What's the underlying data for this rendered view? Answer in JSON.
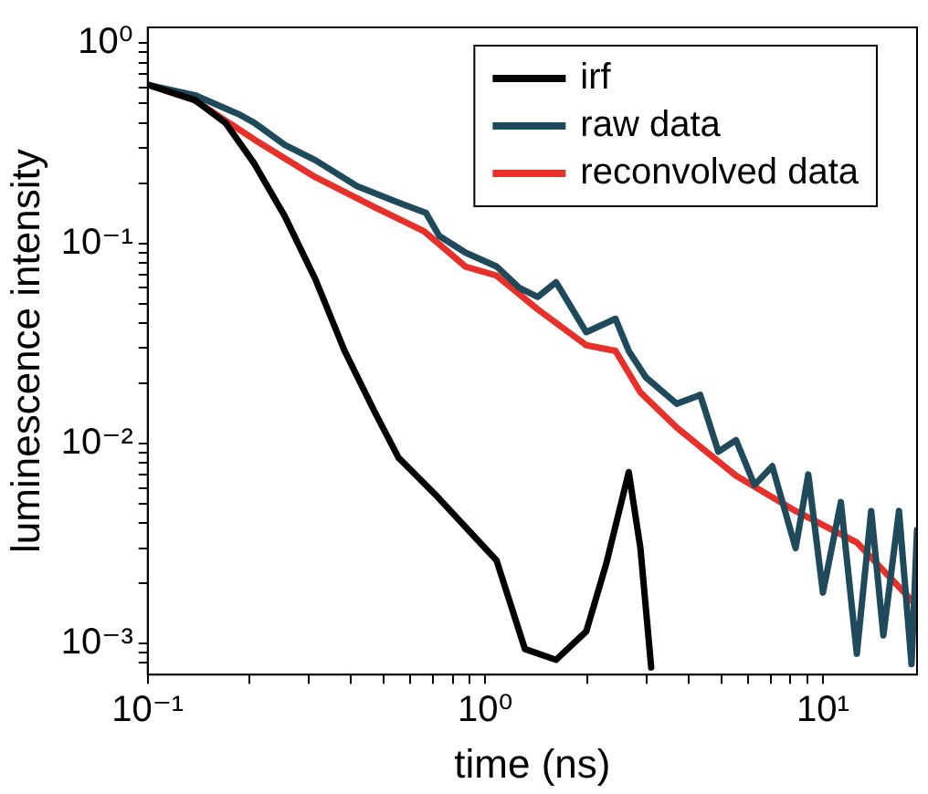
{
  "chart_data": {
    "type": "line",
    "xlabel": "time (ns)",
    "ylabel": "luminescence intensity",
    "log": "xy",
    "grid": false,
    "legend": "top right",
    "marker": "none",
    "line_style": "solid",
    "xlim": [
      0.1,
      19
    ],
    "ylim": [
      0.0007,
      1.2
    ],
    "xticks": [
      {
        "value": 0.1,
        "label": "10⁻¹"
      },
      {
        "value": 0.2,
        "label": null
      },
      {
        "value": 0.3,
        "label": null
      },
      {
        "value": 0.4,
        "label": null
      },
      {
        "value": 0.5,
        "label": null
      },
      {
        "value": 0.6,
        "label": null
      },
      {
        "value": 0.7,
        "label": null
      },
      {
        "value": 0.8,
        "label": null
      },
      {
        "value": 0.9,
        "label": null
      },
      {
        "value": 1,
        "label": "10⁰"
      },
      {
        "value": 2,
        "label": null
      },
      {
        "value": 3,
        "label": null
      },
      {
        "value": 4,
        "label": null
      },
      {
        "value": 5,
        "label": null
      },
      {
        "value": 6,
        "label": null
      },
      {
        "value": 7,
        "label": null
      },
      {
        "value": 8,
        "label": null
      },
      {
        "value": 9,
        "label": null
      },
      {
        "value": 10,
        "label": "10¹"
      }
    ],
    "yticks": [
      {
        "value": 0.0008,
        "label": null
      },
      {
        "value": 0.0009,
        "label": null
      },
      {
        "value": 0.001,
        "label": "10⁻³"
      },
      {
        "value": 0.002,
        "label": null
      },
      {
        "value": 0.003,
        "label": null
      },
      {
        "value": 0.004,
        "label": null
      },
      {
        "value": 0.005,
        "label": null
      },
      {
        "value": 0.006,
        "label": null
      },
      {
        "value": 0.007,
        "label": null
      },
      {
        "value": 0.008,
        "label": null
      },
      {
        "value": 0.009,
        "label": null
      },
      {
        "value": 0.01,
        "label": "10⁻²"
      },
      {
        "value": 0.02,
        "label": null
      },
      {
        "value": 0.03,
        "label": null
      },
      {
        "value": 0.04,
        "label": null
      },
      {
        "value": 0.05,
        "label": null
      },
      {
        "value": 0.06,
        "label": null
      },
      {
        "value": 0.07,
        "label": null
      },
      {
        "value": 0.08,
        "label": null
      },
      {
        "value": 0.09,
        "label": null
      },
      {
        "value": 0.1,
        "label": "10⁻¹"
      },
      {
        "value": 0.2,
        "label": null
      },
      {
        "value": 0.3,
        "label": null
      },
      {
        "value": 0.4,
        "label": null
      },
      {
        "value": 0.5,
        "label": null
      },
      {
        "value": 0.6,
        "label": null
      },
      {
        "value": 0.7,
        "label": null
      },
      {
        "value": 0.8,
        "label": null
      },
      {
        "value": 0.9,
        "label": null
      },
      {
        "value": 1,
        "label": "10⁰"
      }
    ],
    "series": [
      {
        "name": "irf",
        "color": "#000000",
        "x": [
          0.1,
          0.138,
          0.17,
          0.207,
          0.255,
          0.314,
          0.383,
          0.472,
          0.553,
          0.708,
          1.08,
          1.31,
          1.62,
          1.99,
          2.28,
          2.66,
          2.88,
          3.1
        ],
        "values": [
          0.62,
          0.52,
          0.4,
          0.25,
          0.136,
          0.066,
          0.029,
          0.0142,
          0.0085,
          0.0056,
          0.0026,
          0.00094,
          0.00083,
          0.00115,
          0.0025,
          0.0072,
          0.003,
          0.00076
        ]
      },
      {
        "name": "raw data",
        "color": "#1f4a5c",
        "x": [
          0.1,
          0.138,
          0.187,
          0.207,
          0.255,
          0.314,
          0.417,
          0.553,
          0.667,
          0.73,
          0.873,
          1.08,
          1.26,
          1.43,
          1.62,
          1.99,
          2.43,
          2.66,
          2.99,
          3.69,
          4.33,
          4.9,
          5.53,
          6.27,
          7.08,
          8.3,
          9.05,
          10,
          11.3,
          12.6,
          13.9,
          15.1,
          16.8,
          18.3,
          19
        ],
        "values": [
          0.62,
          0.55,
          0.44,
          0.4,
          0.31,
          0.26,
          0.193,
          0.16,
          0.142,
          0.109,
          0.09,
          0.0766,
          0.06,
          0.054,
          0.064,
          0.036,
          0.042,
          0.029,
          0.0214,
          0.0158,
          0.0175,
          0.0091,
          0.0104,
          0.0062,
          0.0077,
          0.003,
          0.007,
          0.0018,
          0.0051,
          0.00089,
          0.0046,
          0.0011,
          0.0046,
          0.00079,
          0.0037
        ]
      },
      {
        "name": "reconvolved data",
        "color": "#e8302a",
        "x": [
          0.1,
          0.138,
          0.207,
          0.314,
          0.472,
          0.658,
          0.873,
          1.08,
          1.43,
          1.99,
          2.43,
          2.88,
          3.69,
          5.53,
          8.3,
          12.6,
          19
        ],
        "values": [
          0.62,
          0.518,
          0.33,
          0.214,
          0.151,
          0.115,
          0.0766,
          0.069,
          0.0468,
          0.031,
          0.029,
          0.018,
          0.012,
          0.0069,
          0.0046,
          0.0032,
          0.00154
        ]
      }
    ]
  }
}
